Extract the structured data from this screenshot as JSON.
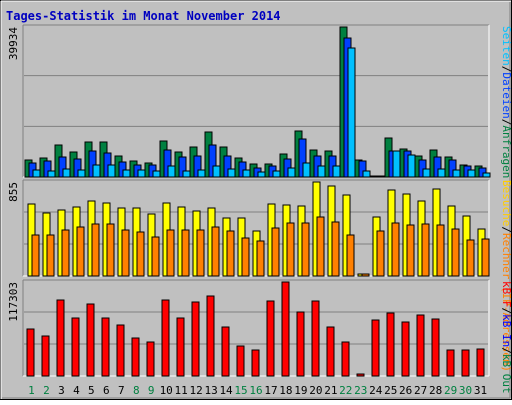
{
  "title": "Tages-Statistik im Monat November 2014",
  "colors": {
    "background": "#c0c0c0",
    "title": "#0000c0",
    "hits": "#008040",
    "files": "#0040ff",
    "pages": "#00c0ff",
    "sites": "#ff8000",
    "visits": "#ffff00",
    "kbytes": "#ff0000",
    "weekend_label": "#008040",
    "weekday_label": "#000000"
  },
  "legend": {
    "top_parts": [
      {
        "text": "Seiten",
        "color": "#00c0ff"
      },
      {
        "text": "/",
        "color": "#000000"
      },
      {
        "text": "Dateien",
        "color": "#0040ff"
      },
      {
        "text": "/",
        "color": "#000000"
      },
      {
        "text": "Anfragen",
        "color": "#008040"
      }
    ],
    "middle_parts": [
      {
        "text": "Besuche",
        "color": "#ffcc00"
      },
      {
        "text": "/",
        "color": "#000000"
      },
      {
        "text": "Rechner (IP-Adressen)",
        "color": "#ff8000"
      }
    ],
    "bottom_parts": [
      {
        "text": "kB F",
        "color": "#ff0000"
      },
      {
        "text": "/",
        "color": "#000000"
      },
      {
        "text": "kB In",
        "color": "#0000ff"
      },
      {
        "text": "/",
        "color": "#000000"
      },
      {
        "text": "kB Out",
        "color": "#008040"
      }
    ]
  },
  "chart_data": [
    {
      "type": "bar",
      "panel": "top",
      "max_label": "39934",
      "ymax": 39934,
      "grid": true,
      "categories": [
        "1",
        "2",
        "3",
        "4",
        "5",
        "6",
        "7",
        "8",
        "9",
        "10",
        "11",
        "12",
        "13",
        "14",
        "15",
        "16",
        "17",
        "18",
        "19",
        "20",
        "21",
        "22",
        "23",
        "24",
        "25",
        "26",
        "27",
        "28",
        "29",
        "30",
        "31"
      ],
      "series": [
        {
          "name": "Anfragen",
          "values": [
            4400,
            5100,
            8500,
            6700,
            9200,
            9200,
            5700,
            4200,
            3600,
            9700,
            6700,
            8000,
            12100,
            7900,
            5000,
            3400,
            3400,
            6100,
            12300,
            7200,
            6800,
            39934,
            4600,
            0,
            10400,
            7500,
            5500,
            7200,
            5300,
            3200,
            2900
          ]
        },
        {
          "name": "Dateien",
          "values": [
            3600,
            4300,
            5400,
            4900,
            6800,
            6400,
            4000,
            3300,
            3300,
            7100,
            5200,
            5500,
            8600,
            5600,
            3900,
            2500,
            2800,
            4900,
            10000,
            5700,
            5600,
            37000,
            4300,
            0,
            6800,
            6800,
            4600,
            5300,
            4500,
            2900,
            2400
          ]
        },
        {
          "name": "Seiten",
          "values": [
            1800,
            1600,
            2200,
            1800,
            3100,
            3100,
            1800,
            1800,
            1500,
            2900,
            1700,
            1900,
            3000,
            2200,
            1900,
            1400,
            1500,
            2500,
            3600,
            2900,
            3000,
            34400,
            1500,
            0,
            6800,
            5900,
            2200,
            2200,
            1800,
            1900,
            1100
          ]
        }
      ],
      "weekend_days": [
        "1",
        "2",
        "8",
        "9",
        "15",
        "16",
        "22",
        "23",
        "29",
        "30"
      ]
    },
    {
      "type": "bar",
      "panel": "middle",
      "max_label": "855",
      "ymax": 855,
      "grid": true,
      "series": [
        {
          "name": "Besuche",
          "values": [
            653,
            570,
            598,
            630,
            680,
            660,
            618,
            622,
            563,
            667,
            632,
            594,
            618,
            530,
            530,
            410,
            651,
            642,
            635,
            855,
            822,
            740,
            16,
            540,
            780,
            745,
            680,
            793,
            640,
            550,
            424
          ]
        },
        {
          "name": "Rechner (IP-Adressen)",
          "values": [
            370,
            370,
            420,
            450,
            475,
            475,
            420,
            400,
            355,
            420,
            415,
            420,
            450,
            410,
            350,
            315,
            440,
            480,
            480,
            540,
            495,
            370,
            16,
            413,
            480,
            465,
            475,
            460,
            425,
            330,
            335
          ]
        }
      ]
    },
    {
      "type": "bar",
      "panel": "bottom",
      "max_label": "117303",
      "ymax": 117303,
      "grid": true,
      "series": [
        {
          "name": "kB F",
          "values": [
            59000,
            50000,
            95000,
            73000,
            90000,
            73000,
            64000,
            48000,
            42000,
            95000,
            73000,
            92000,
            100000,
            61000,
            38000,
            33000,
            94000,
            117303,
            80000,
            94000,
            61000,
            43000,
            2000,
            70000,
            78000,
            68000,
            76000,
            71000,
            33000,
            33000,
            34000
          ]
        }
      ]
    }
  ]
}
